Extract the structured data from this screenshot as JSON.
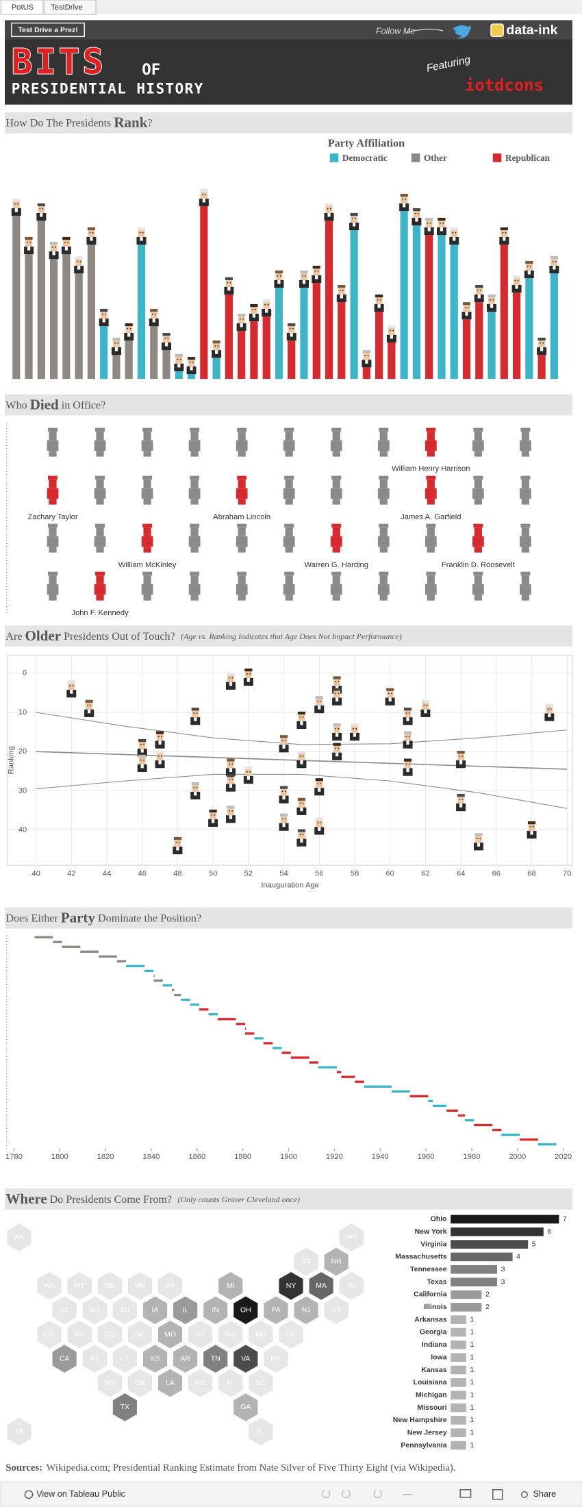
{
  "tabs": [
    "PotUS",
    "TestDrive"
  ],
  "header": {
    "button": "Test Drive a Prez!",
    "follow": "Follow Me",
    "brand": "data-ink",
    "title_1": "BITS",
    "title_2": "OF",
    "title_3": "PRESIDENTIAL HISTORY",
    "featuring": "Featuring",
    "featured": "iotdcons"
  },
  "chart_data": [
    {
      "type": "bar",
      "title": [
        {
          "text": "How Do The Presidents "
        },
        {
          "text": "Rank",
          "emphasis": true
        },
        {
          "text": "?"
        }
      ],
      "legend_title": "Party Affiliation",
      "ylim": [
        0,
        190
      ],
      "series": [
        {
          "name": "Democratic",
          "color": "#3db5c9",
          "values": [
            null,
            null,
            null,
            null,
            null,
            null,
            null,
            55,
            null,
            null,
            140,
            null,
            null,
            8,
            5,
            null,
            22,
            null,
            null,
            null,
            null,
            95,
            null,
            95,
            null,
            null,
            null,
            155,
            null,
            null,
            null,
            175,
            160,
            null,
            150,
            140,
            null,
            null,
            70,
            null,
            null,
            105,
            null,
            110
          ]
        },
        {
          "name": "Other",
          "color": "#8e8782",
          "values": [
            170,
            130,
            165,
            125,
            130,
            110,
            140,
            null,
            25,
            40,
            null,
            55,
            30,
            null,
            null,
            null,
            null,
            null,
            null,
            null,
            null,
            null,
            null,
            null,
            null,
            null,
            null,
            null,
            null,
            null,
            null,
            null,
            null,
            null,
            null,
            null,
            null,
            null,
            null,
            null,
            null,
            null,
            null,
            null
          ]
        },
        {
          "name": "Republican",
          "color": "#d62a2e",
          "values": [
            null,
            null,
            null,
            null,
            null,
            null,
            null,
            null,
            null,
            null,
            null,
            null,
            null,
            null,
            null,
            180,
            null,
            88,
            50,
            60,
            65,
            null,
            40,
            null,
            100,
            165,
            80,
            null,
            12,
            70,
            38,
            null,
            null,
            150,
            null,
            null,
            62,
            80,
            null,
            140,
            90,
            null,
            25,
            null
          ]
        }
      ]
    },
    {
      "type": "pictograph",
      "title": [
        {
          "text": "Who "
        },
        {
          "text": "Died",
          "emphasis": true
        },
        {
          "text": " in Office?"
        }
      ],
      "color": "#8a8a8a",
      "highlight_color": "#d62a2e",
      "labels": [
        null,
        null,
        null,
        null,
        null,
        null,
        null,
        null,
        "William Henry Harrison",
        null,
        null,
        "Zachary Taylor",
        null,
        null,
        null,
        "Abraham Lincoln",
        null,
        null,
        null,
        "James A. Garfield",
        null,
        null,
        null,
        null,
        "William McKinley",
        null,
        null,
        null,
        "Warren G. Harding",
        null,
        null,
        "Franklin D. Roosevelt",
        null,
        null,
        "John F. Kennedy",
        null,
        null,
        null,
        null,
        null,
        null,
        null,
        null,
        null
      ]
    },
    {
      "type": "scatter",
      "title": [
        {
          "text": "Are "
        },
        {
          "text": "Older",
          "emphasis": true
        },
        {
          "text": " Presidents Out of Touch?"
        }
      ],
      "subtitle": "(Age vs. Ranking Indicates that Age Does Not Impact Performance)",
      "x_label": "Inauguration Age",
      "y_label": "Ranking",
      "grid": true,
      "xlim": [
        38.4,
        70.3
      ],
      "ylim": [
        49,
        -4.6
      ],
      "xticks": [
        40,
        42,
        44,
        46,
        48,
        50,
        52,
        54,
        56,
        58,
        60,
        62,
        64,
        66,
        68,
        70
      ],
      "yticks": [
        0,
        10,
        20,
        30,
        40
      ],
      "x": [
        42,
        43,
        46,
        46,
        47,
        47,
        48,
        49,
        49,
        50,
        51,
        51,
        51,
        51,
        52,
        52,
        54,
        54,
        54,
        55,
        55,
        55,
        55,
        56,
        56,
        56,
        57,
        57,
        57,
        57,
        58,
        60,
        61,
        61,
        61,
        62,
        64,
        64,
        65,
        68,
        69
      ],
      "values": [
        4,
        9,
        19,
        23,
        17,
        22,
        44,
        11,
        30,
        37,
        2,
        24,
        28,
        36,
        1,
        26,
        18,
        31,
        38,
        12,
        22,
        34,
        42,
        8,
        29,
        39,
        3,
        6,
        15,
        20,
        15,
        6,
        11,
        17,
        24,
        9,
        22,
        33,
        43,
        40,
        10
      ],
      "trend_color": "#8c8c8c",
      "trend_lines": [
        {
          "x": [
            40,
            70
          ],
          "values": [
            20,
            24.5
          ]
        },
        {
          "x": [
            40,
            45,
            50,
            55,
            60,
            65,
            70
          ],
          "values": [
            10,
            13.5,
            16.5,
            18.2,
            18,
            16.5,
            14.5
          ]
        },
        {
          "x": [
            40,
            45,
            50,
            55,
            60,
            65,
            70
          ],
          "values": [
            29.5,
            27.5,
            25.8,
            25.8,
            27.5,
            30.5,
            34.5
          ]
        }
      ]
    },
    {
      "type": "gantt",
      "title": [
        {
          "text": "Does Either "
        },
        {
          "text": "Party",
          "emphasis": true
        },
        {
          "text": " Dominate the Position?"
        }
      ],
      "xlim": [
        1776,
        2024
      ],
      "xticks": [
        1780,
        1800,
        1820,
        1840,
        1860,
        1880,
        1900,
        1920,
        1940,
        1960,
        1980,
        2000,
        2020
      ],
      "start": [
        1789,
        1797,
        1801,
        1809,
        1817,
        1825,
        1829,
        1837,
        1841,
        1841,
        1845,
        1849,
        1850,
        1853,
        1857,
        1861,
        1865,
        1869,
        1877,
        1881,
        1881,
        1885,
        1889,
        1893,
        1897,
        1901,
        1909,
        1913,
        1921,
        1923,
        1929,
        1933,
        1945,
        1953,
        1961,
        1963,
        1969,
        1974,
        1977,
        1981,
        1989,
        1993,
        2001,
        2009
      ],
      "end": [
        1797,
        1801,
        1809,
        1817,
        1825,
        1829,
        1837,
        1841,
        1841,
        1845,
        1849,
        1850,
        1853,
        1857,
        1861,
        1865,
        1869,
        1877,
        1881,
        1881,
        1885,
        1889,
        1893,
        1897,
        1901,
        1909,
        1913,
        1921,
        1923,
        1929,
        1933,
        1945,
        1953,
        1961,
        1963,
        1969,
        1974,
        1977,
        1981,
        1989,
        1993,
        2001,
        2009,
        2017
      ],
      "colors": [
        "#8e8782",
        "#8e8782",
        "#8e8782",
        "#8e8782",
        "#8e8782",
        "#8e8782",
        "#3db5c9",
        "#3db5c9",
        "#8e8782",
        "#8e8782",
        "#3db5c9",
        "#8e8782",
        "#8e8782",
        "#3db5c9",
        "#3db5c9",
        "#d62a2e",
        "#3db5c9",
        "#d62a2e",
        "#d62a2e",
        "#d62a2e",
        "#d62a2e",
        "#3db5c9",
        "#d62a2e",
        "#3db5c9",
        "#d62a2e",
        "#d62a2e",
        "#d62a2e",
        "#3db5c9",
        "#d62a2e",
        "#d62a2e",
        "#d62a2e",
        "#3db5c9",
        "#3db5c9",
        "#d62a2e",
        "#3db5c9",
        "#3db5c9",
        "#d62a2e",
        "#d62a2e",
        "#3db5c9",
        "#d62a2e",
        "#d62a2e",
        "#3db5c9",
        "#d62a2e",
        "#3db5c9"
      ]
    },
    {
      "type": "hexmap",
      "title": [
        {
          "text": "Where",
          "emphasis": true
        },
        {
          "text": " Do Presidents Come From?"
        }
      ],
      "subtitle": "(Only counts Grover Cleveland once)",
      "states": [
        "AK",
        "ME",
        "VT",
        "NH",
        "WA",
        "MT",
        "ND",
        "MN",
        "WI",
        "MI",
        "NY",
        "MA",
        "RI",
        "ID",
        "WY",
        "SD",
        "IA",
        "IL",
        "IN",
        "OH",
        "PA",
        "NJ",
        "CT",
        "OR",
        "NV",
        "CO",
        "NE",
        "MO",
        "KY",
        "WV",
        "MD",
        "DE",
        "CA",
        "AZ",
        "UT",
        "KS",
        "AR",
        "TN",
        "VA",
        "NC",
        "NM",
        "OK",
        "LA",
        "MS",
        "AL",
        "SC",
        "TX",
        "GA",
        "HI",
        "FL"
      ],
      "values": [
        0,
        0,
        0,
        1,
        0,
        0,
        0,
        0,
        0,
        1,
        6,
        4,
        0,
        0,
        0,
        0,
        1,
        2,
        1,
        7,
        1,
        1,
        0,
        0,
        0,
        0,
        0,
        1,
        0,
        0,
        0,
        0,
        2,
        0,
        0,
        1,
        1,
        3,
        5,
        0,
        0,
        0,
        1,
        0,
        0,
        0,
        3,
        1,
        0,
        0
      ]
    },
    {
      "type": "hbar",
      "xlim": [
        0,
        7
      ],
      "categories": [
        "Ohio",
        "New York",
        "Virginia",
        "Massachusetts",
        "Tennessee",
        "Texas",
        "California",
        "Illinois",
        "Arkansas",
        "Georgia",
        "Indiana",
        "Iowa",
        "Kansas",
        "Louisiana",
        "Michigan",
        "Missouri",
        "New Hampshire",
        "New Jersey",
        "Pennsylvania"
      ],
      "values": [
        7,
        6,
        5,
        4,
        3,
        3,
        2,
        2,
        1,
        1,
        1,
        1,
        1,
        1,
        1,
        1,
        1,
        1,
        1
      ]
    }
  ],
  "sources": {
    "label": "Sources:",
    "text": "Wikipedia.com; Presidential Ranking Estimate from Nate Silver of Five Thirty Eight (via Wikipedia)."
  },
  "footer": {
    "view": "View on Tableau Public",
    "share": "Share"
  }
}
